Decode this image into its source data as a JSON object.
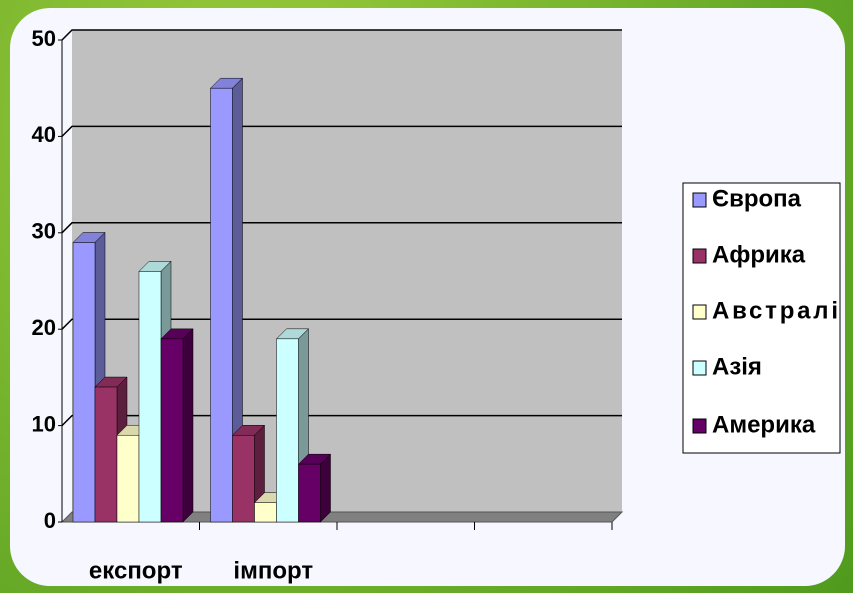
{
  "chart_data": {
    "type": "bar3d",
    "categories": [
      "експорт",
      "імпорт",
      null,
      null
    ],
    "series": [
      {
        "name": "Європа",
        "color": "#9999ff",
        "values": [
          29,
          45,
          null,
          null
        ]
      },
      {
        "name": "Африка",
        "color": "#993366",
        "values": [
          14,
          9,
          null,
          null
        ]
      },
      {
        "name": "Австралі",
        "color": "#ffffcc",
        "values": [
          9,
          2,
          null,
          null
        ]
      },
      {
        "name": "Азія",
        "color": "#ccffff",
        "values": [
          26,
          19,
          null,
          null
        ]
      },
      {
        "name": "Америка",
        "color": "#660066",
        "values": [
          19,
          6,
          null,
          null
        ]
      }
    ],
    "ylim": [
      0,
      50
    ],
    "yticks": [
      0,
      10,
      20,
      30,
      40,
      50
    ],
    "grid": true,
    "legend": "right"
  }
}
